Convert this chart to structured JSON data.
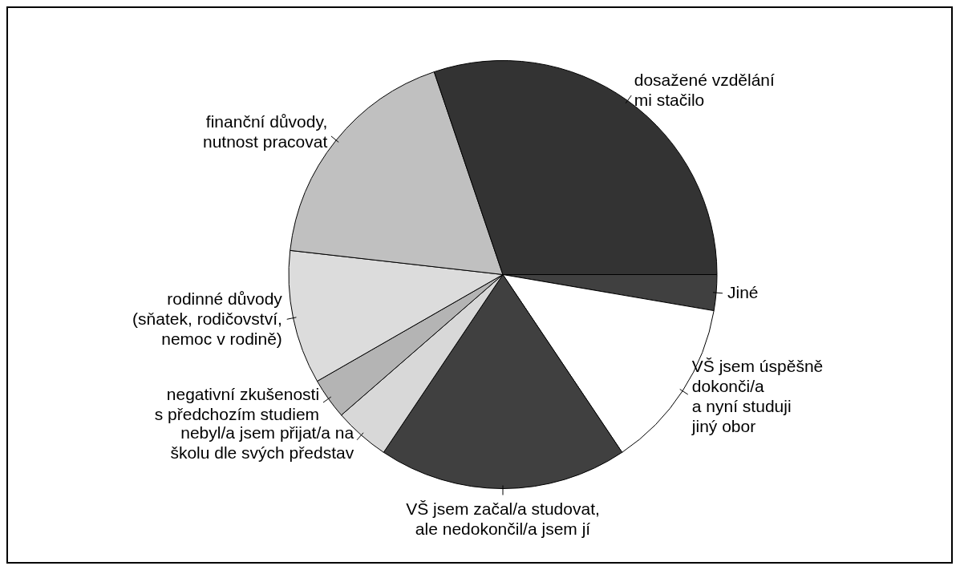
{
  "chart_data": {
    "type": "pie",
    "categories": [
      "Jiné",
      "VŠ jsem úspěšně\ndokonči/a\na nyní studuji\njiný obor",
      "VŠ jsem začal/a studovat,\nale nedokončil/a jsem jí",
      "nebyl/a jsem přijat/a na\nškolu dle svých představ",
      "negativní zkušenosti\ns předchozím studiem",
      "rodinné důvody\n(sňatek, rodičovství,\nnemoc v rodině)",
      "finanční důvody,\nnutnost pracovat",
      "dosažené vzdělání\nmi stačilo"
    ],
    "values": [
      2.7,
      12.9,
      18.8,
      4.2,
      3.1,
      10.1,
      18.0,
      30.2
    ],
    "colors": [
      "#404040",
      "#ffffff",
      "#404040",
      "#d8d8d8",
      "#b4b4b4",
      "#dcdcdc",
      "#c0c0c0",
      "#333333"
    ],
    "legend": false
  }
}
